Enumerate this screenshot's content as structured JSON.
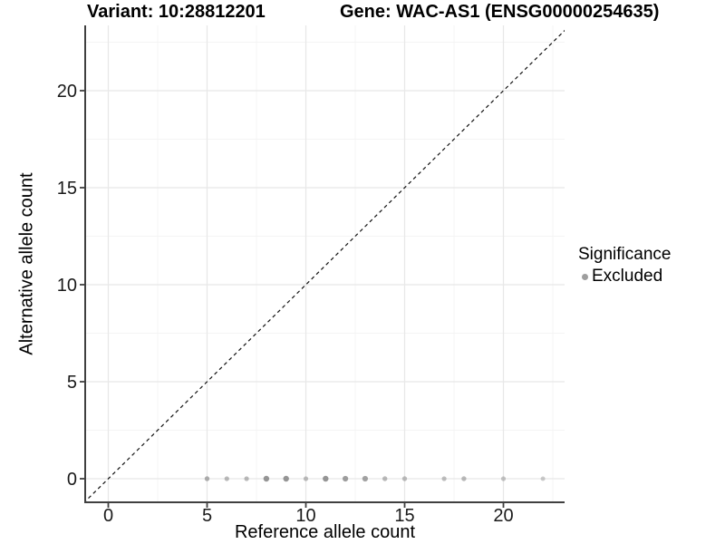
{
  "header": {
    "variant_title": "Variant: 10:28812201",
    "gene_title": "Gene: WAC-AS1 (ENSG00000254635)"
  },
  "chart_data": {
    "type": "scatter",
    "xlabel": "Reference allele count",
    "ylabel": "Alternative allele count",
    "x_ticks": [
      0,
      5,
      10,
      15,
      20
    ],
    "y_ticks": [
      0,
      5,
      10,
      15,
      20
    ],
    "x_minor_ticks": [
      2.5,
      7.5,
      12.5,
      17.5,
      22.5
    ],
    "y_minor_ticks": [
      2.5,
      7.5,
      12.5,
      17.5,
      22.5
    ],
    "xlim": [
      -1.2,
      23.1
    ],
    "ylim": [
      -1.2,
      23.4
    ],
    "grid": true,
    "reference_line": {
      "equation": "y = x",
      "style": "dashed",
      "color": "#111111"
    },
    "legend": {
      "title": "Significance",
      "position": "right",
      "items": [
        {
          "label": "Excluded",
          "color": "#9e9e9e"
        }
      ]
    },
    "series": [
      {
        "name": "Excluded",
        "color": "#8f8f8f",
        "points": [
          {
            "x": 5,
            "y": 0,
            "r": 2.7,
            "opacity": 0.72
          },
          {
            "x": 6,
            "y": 0,
            "r": 2.6,
            "opacity": 0.62
          },
          {
            "x": 7,
            "y": 0,
            "r": 2.6,
            "opacity": 0.62
          },
          {
            "x": 8,
            "y": 0,
            "r": 3.2,
            "opacity": 0.95
          },
          {
            "x": 9,
            "y": 0,
            "r": 3.2,
            "opacity": 0.95
          },
          {
            "x": 10,
            "y": 0,
            "r": 2.6,
            "opacity": 0.58
          },
          {
            "x": 11,
            "y": 0,
            "r": 3.2,
            "opacity": 0.95
          },
          {
            "x": 12,
            "y": 0,
            "r": 3.1,
            "opacity": 0.88
          },
          {
            "x": 13,
            "y": 0,
            "r": 3.1,
            "opacity": 0.82
          },
          {
            "x": 14,
            "y": 0,
            "r": 2.7,
            "opacity": 0.62
          },
          {
            "x": 15,
            "y": 0,
            "r": 2.7,
            "opacity": 0.58
          },
          {
            "x": 17,
            "y": 0,
            "r": 2.6,
            "opacity": 0.58
          },
          {
            "x": 18,
            "y": 0,
            "r": 2.7,
            "opacity": 0.62
          },
          {
            "x": 20,
            "y": 0,
            "r": 2.6,
            "opacity": 0.52
          },
          {
            "x": 22,
            "y": 0,
            "r": 2.5,
            "opacity": 0.45
          }
        ]
      }
    ]
  },
  "colors": {
    "background": "#ffffff",
    "axis_line": "#404040",
    "grid_major": "#e8e8e8",
    "grid_minor": "#f4f4f4",
    "tick_text": "#1a1a1a",
    "dashed_line": "#111111"
  }
}
